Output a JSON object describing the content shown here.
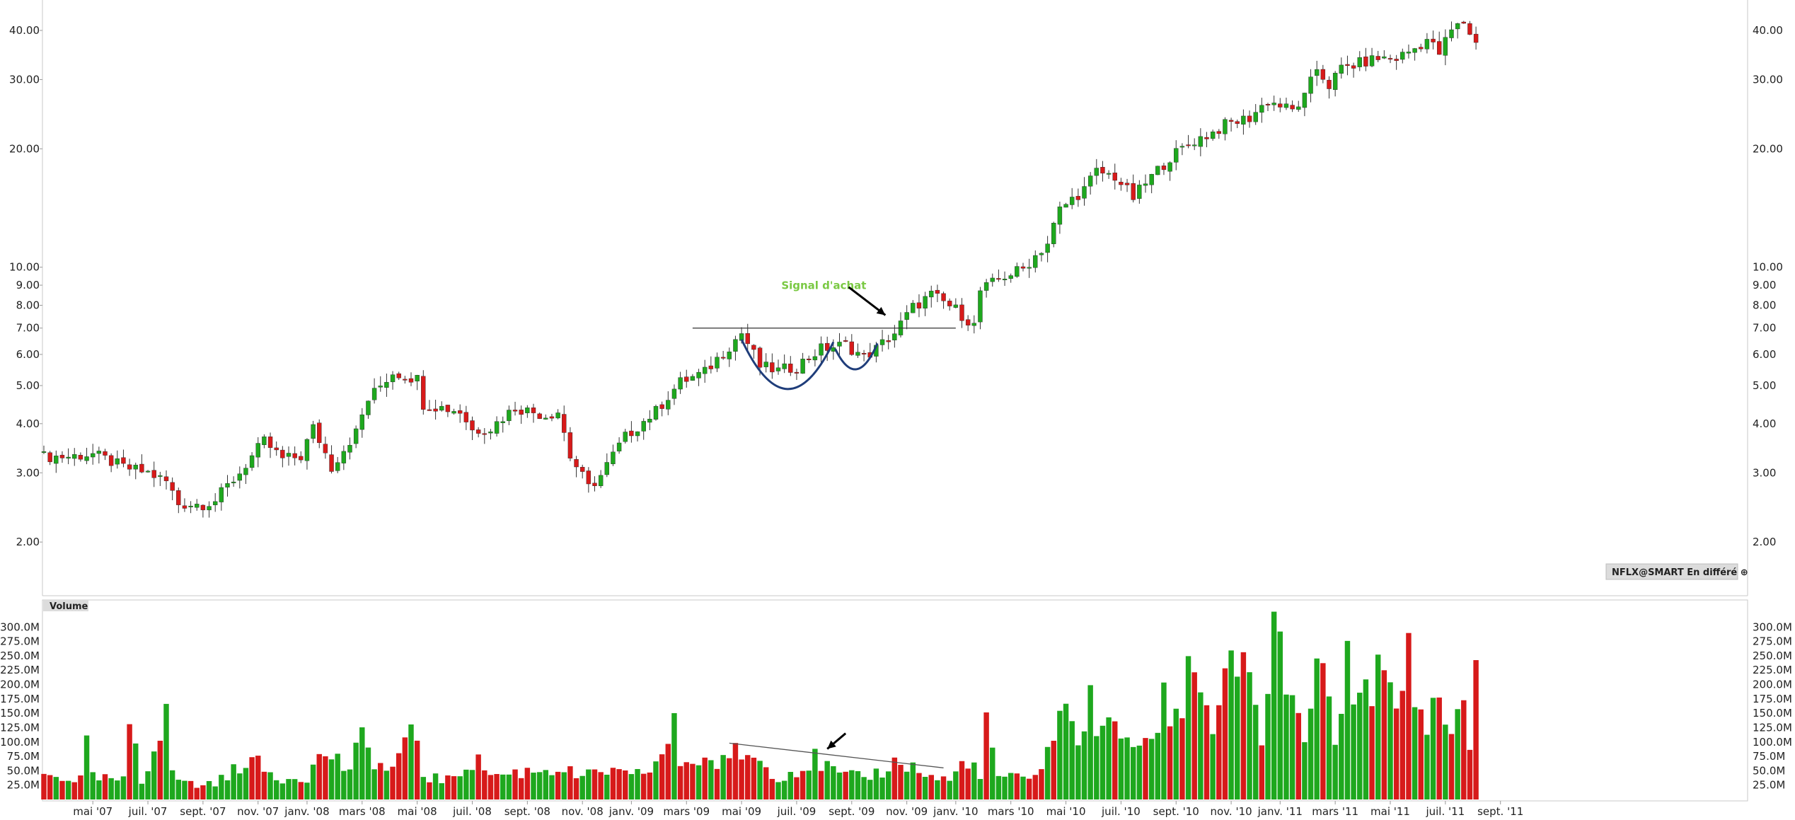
{
  "chart_data": [
    {
      "type": "candlestick",
      "ticker_badge": "NFLX@SMART En différé ⊕",
      "y_scale": "log",
      "ylim": [
        1.6,
        44
      ],
      "y_ticks": [
        {
          "value": 40,
          "label": "40.00"
        },
        {
          "value": 30,
          "label": "30.00"
        },
        {
          "value": 20,
          "label": "20.00"
        },
        {
          "value": 10,
          "label": "10.00"
        },
        {
          "value": 9,
          "label": "9.00"
        },
        {
          "value": 8,
          "label": "8.00"
        },
        {
          "value": 7,
          "label": "7.00"
        },
        {
          "value": 6,
          "label": "6.00"
        },
        {
          "value": 5,
          "label": "5.00"
        },
        {
          "value": 4,
          "label": "4.00"
        },
        {
          "value": 3,
          "label": "3.00"
        },
        {
          "value": 2,
          "label": "2.00"
        }
      ],
      "x_ticks": [
        {
          "index": 8,
          "label": "mai '07"
        },
        {
          "index": 17,
          "label": "juil. '07"
        },
        {
          "index": 26,
          "label": "sept. '07"
        },
        {
          "index": 35,
          "label": "nov. '07"
        },
        {
          "index": 43,
          "label": "janv. '08"
        },
        {
          "index": 52,
          "label": "mars '08"
        },
        {
          "index": 61,
          "label": "mai '08"
        },
        {
          "index": 70,
          "label": "juil. '08"
        },
        {
          "index": 79,
          "label": "sept. '08"
        },
        {
          "index": 88,
          "label": "nov. '08"
        },
        {
          "index": 96,
          "label": "janv. '09"
        },
        {
          "index": 105,
          "label": "mars '09"
        },
        {
          "index": 114,
          "label": "mai '09"
        },
        {
          "index": 123,
          "label": "juil. '09"
        },
        {
          "index": 132,
          "label": "sept. '09"
        },
        {
          "index": 141,
          "label": "nov. '09"
        },
        {
          "index": 149,
          "label": "janv. '10"
        },
        {
          "index": 158,
          "label": "mars '10"
        },
        {
          "index": 167,
          "label": "mai '10"
        },
        {
          "index": 176,
          "label": "juil. '10"
        },
        {
          "index": 185,
          "label": "sept. '10"
        },
        {
          "index": 194,
          "label": "nov. '10"
        },
        {
          "index": 202,
          "label": "janv. '11"
        },
        {
          "index": 211,
          "label": "mars '11"
        },
        {
          "index": 220,
          "label": "mai '11"
        },
        {
          "index": 229,
          "label": "juil. '11"
        },
        {
          "index": 238,
          "label": "sept. '11"
        }
      ],
      "close_anchors": [
        [
          0,
          3.3
        ],
        [
          4,
          3.3
        ],
        [
          8,
          3.35
        ],
        [
          13,
          3.1
        ],
        [
          17,
          3.0
        ],
        [
          20,
          2.85
        ],
        [
          22,
          2.5
        ],
        [
          26,
          2.5
        ],
        [
          28,
          2.55
        ],
        [
          32,
          3.0
        ],
        [
          36,
          3.6
        ],
        [
          39,
          3.25
        ],
        [
          42,
          3.3
        ],
        [
          44,
          3.9
        ],
        [
          47,
          3.1
        ],
        [
          51,
          3.8
        ],
        [
          53,
          4.6
        ],
        [
          57,
          5.4
        ],
        [
          61,
          5.2
        ],
        [
          62,
          4.5
        ],
        [
          68,
          4.3
        ],
        [
          70,
          3.85
        ],
        [
          73,
          3.9
        ],
        [
          77,
          4.4
        ],
        [
          82,
          4.2
        ],
        [
          84,
          4.3
        ],
        [
          86,
          3.3
        ],
        [
          89,
          2.75
        ],
        [
          91,
          2.95
        ],
        [
          95,
          3.7
        ],
        [
          100,
          4.3
        ],
        [
          104,
          5.1
        ],
        [
          108,
          5.4
        ],
        [
          112,
          6.3
        ],
        [
          114,
          6.8
        ],
        [
          117,
          5.6
        ],
        [
          120,
          5.45
        ],
        [
          123,
          5.6
        ],
        [
          127,
          6.2
        ],
        [
          131,
          6.35
        ],
        [
          134,
          5.9
        ],
        [
          136,
          6.2
        ],
        [
          139,
          6.8
        ],
        [
          142,
          7.9
        ],
        [
          145,
          8.5
        ],
        [
          149,
          7.8
        ],
        [
          152,
          7.1
        ],
        [
          153,
          8.7
        ],
        [
          157,
          9.5
        ],
        [
          160,
          9.9
        ],
        [
          164,
          11.5
        ],
        [
          166,
          14.0
        ],
        [
          170,
          15.8
        ],
        [
          172,
          17.5
        ],
        [
          175,
          17.0
        ],
        [
          178,
          15.0
        ],
        [
          181,
          17.0
        ],
        [
          184,
          19.0
        ],
        [
          188,
          21.0
        ],
        [
          191,
          22.0
        ],
        [
          193,
          23.0
        ],
        [
          197,
          24.0
        ],
        [
          200,
          26.5
        ],
        [
          204,
          25.0
        ],
        [
          206,
          27.0
        ],
        [
          208,
          32.0
        ],
        [
          210,
          29.0
        ],
        [
          212,
          32.0
        ],
        [
          215,
          33.0
        ],
        [
          218,
          34.0
        ],
        [
          221,
          34.0
        ],
        [
          224,
          36.0
        ],
        [
          226,
          38.0
        ],
        [
          228,
          35.0
        ],
        [
          230,
          40.0
        ],
        [
          232,
          42.0
        ],
        [
          233,
          39.5
        ],
        [
          234,
          37.0
        ]
      ],
      "annotations": [
        {
          "type": "text",
          "text": "Signal d'achat",
          "color": "#7ac943",
          "index": 120.5,
          "price": 8.8
        },
        {
          "type": "arrow",
          "from": {
            "index": 131.5,
            "price": 8.9
          },
          "to": {
            "index": 137.5,
            "price": 7.55
          },
          "color": "#000000"
        },
        {
          "type": "horizontal_line",
          "price": 7.0,
          "from_index": 106,
          "to_index": 149,
          "color": "#333333"
        },
        {
          "type": "arc",
          "label": "cup",
          "from": {
            "index": 114,
            "price": 6.55
          },
          "to": {
            "index": 129,
            "price": 6.45
          },
          "bottom_price": 4.9,
          "color": "#1f3d7a"
        },
        {
          "type": "arc",
          "label": "handle",
          "from": {
            "index": 129.3,
            "price": 6.2
          },
          "to": {
            "index": 136.2,
            "price": 6.4
          },
          "bottom_price": 5.5,
          "color": "#1f3d7a"
        }
      ]
    },
    {
      "type": "bar",
      "panel_label": "Volume",
      "ylim": [
        0,
        320
      ],
      "unit": "M",
      "y_ticks": [
        {
          "value": 300,
          "label": "300.0M"
        },
        {
          "value": 275,
          "label": "275.0M"
        },
        {
          "value": 250,
          "label": "250.0M"
        },
        {
          "value": 225,
          "label": "225.0M"
        },
        {
          "value": 200,
          "label": "200.0M"
        },
        {
          "value": 175,
          "label": "175.0M"
        },
        {
          "value": 150,
          "label": "150.0M"
        },
        {
          "value": 125,
          "label": "125.0M"
        },
        {
          "value": 100,
          "label": "100.0M"
        },
        {
          "value": 75,
          "label": "75.0M"
        },
        {
          "value": 50,
          "label": "50.0M"
        },
        {
          "value": 25,
          "label": "25.0M"
        }
      ],
      "volume_anchors": [
        [
          0,
          45
        ],
        [
          6,
          38
        ],
        [
          7,
          100
        ],
        [
          8,
          40
        ],
        [
          13,
          35
        ],
        [
          14,
          115
        ],
        [
          15,
          112
        ],
        [
          16,
          30
        ],
        [
          20,
          185
        ],
        [
          21,
          45
        ],
        [
          25,
          25
        ],
        [
          30,
          40
        ],
        [
          33,
          80
        ],
        [
          38,
          40
        ],
        [
          43,
          45
        ],
        [
          46,
          90
        ],
        [
          50,
          55
        ],
        [
          52,
          110
        ],
        [
          56,
          50
        ],
        [
          61,
          125
        ],
        [
          62,
          45
        ],
        [
          66,
          35
        ],
        [
          70,
          75
        ],
        [
          74,
          45
        ],
        [
          80,
          55
        ],
        [
          84,
          60
        ],
        [
          88,
          40
        ],
        [
          92,
          55
        ],
        [
          96,
          40
        ],
        [
          100,
          65
        ],
        [
          103,
          130
        ],
        [
          104,
          70
        ],
        [
          107,
          75
        ],
        [
          112,
          65
        ],
        [
          113,
          95
        ],
        [
          116,
          80
        ],
        [
          120,
          45
        ],
        [
          124,
          60
        ],
        [
          126,
          75
        ],
        [
          130,
          45
        ],
        [
          134,
          40
        ],
        [
          138,
          60
        ],
        [
          140,
          75
        ],
        [
          144,
          45
        ],
        [
          148,
          35
        ],
        [
          151,
          80
        ],
        [
          153,
          40
        ],
        [
          154,
          130
        ],
        [
          156,
          45
        ],
        [
          161,
          35
        ],
        [
          164,
          90
        ],
        [
          166,
          160
        ],
        [
          169,
          130
        ],
        [
          171,
          170
        ],
        [
          174,
          125
        ],
        [
          177,
          125
        ],
        [
          180,
          90
        ],
        [
          183,
          180
        ],
        [
          186,
          160
        ],
        [
          187,
          300
        ],
        [
          189,
          225
        ],
        [
          191,
          120
        ],
        [
          193,
          270
        ],
        [
          195,
          200
        ],
        [
          197,
          230
        ],
        [
          199,
          120
        ],
        [
          200,
          160
        ],
        [
          201,
          315
        ],
        [
          203,
          225
        ],
        [
          205,
          130
        ],
        [
          207,
          150
        ],
        [
          209,
          265
        ],
        [
          210,
          160
        ],
        [
          211,
          135
        ],
        [
          213,
          235
        ],
        [
          215,
          200
        ],
        [
          217,
          245
        ],
        [
          219,
          205
        ],
        [
          221,
          165
        ],
        [
          223,
          265
        ],
        [
          225,
          155
        ],
        [
          227,
          180
        ],
        [
          230,
          135
        ],
        [
          232,
          190
        ],
        [
          233,
          110
        ],
        [
          234,
          210
        ]
      ],
      "annotations": [
        {
          "type": "trend_line",
          "from": {
            "index": 112,
            "value": 98
          },
          "to": {
            "index": 147,
            "value": 55
          },
          "color": "#555555"
        },
        {
          "type": "arrow",
          "from": {
            "index": 131,
            "value": 115
          },
          "to": {
            "index": 128,
            "value": 88
          },
          "color": "#000000"
        }
      ]
    }
  ],
  "colors": {
    "up": "#1ea81e",
    "down": "#d71a1a",
    "grid_line": "#999999",
    "annotation_text": "#7ac943"
  }
}
